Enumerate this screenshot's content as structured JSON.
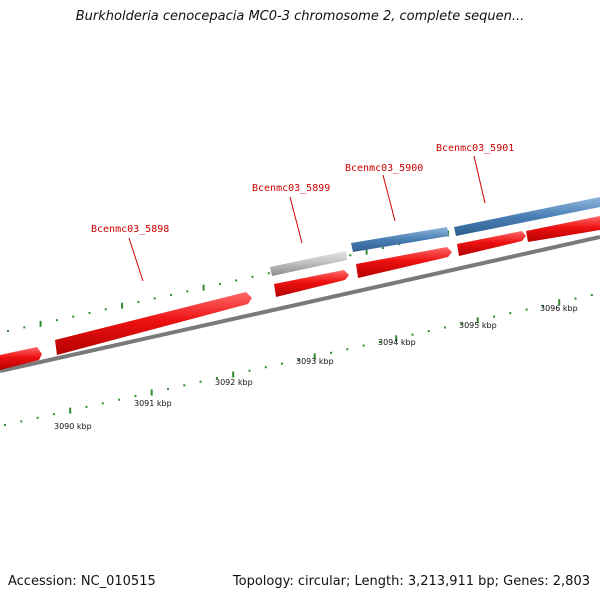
{
  "title": "Burkholderia cenocepacia MC0-3 chromosome 2, complete sequen...",
  "footer": {
    "accession": "Accession: NC_010515",
    "summary": "Topology: circular; Length: 3,213,911 bp; Genes: 2,803"
  },
  "colors": {
    "forward_gene": "#e8141c",
    "reverse_gene": "#4a7fb5",
    "gray_gene": "#bdbdbd",
    "label": "#cc0000",
    "backbone": "#808080",
    "ticks": "#2e8b2e"
  },
  "gene_labels": [
    "Bcenmc03_5898",
    "Bcenmc03_5899",
    "Bcenmc03_5900",
    "Bcenmc03_5901"
  ],
  "kbp_labels": [
    "3090 kbp",
    "3091 kbp",
    "3092 kbp",
    "3093 kbp",
    "3094 kbp",
    "3095 kbp",
    "3096 kbp"
  ]
}
